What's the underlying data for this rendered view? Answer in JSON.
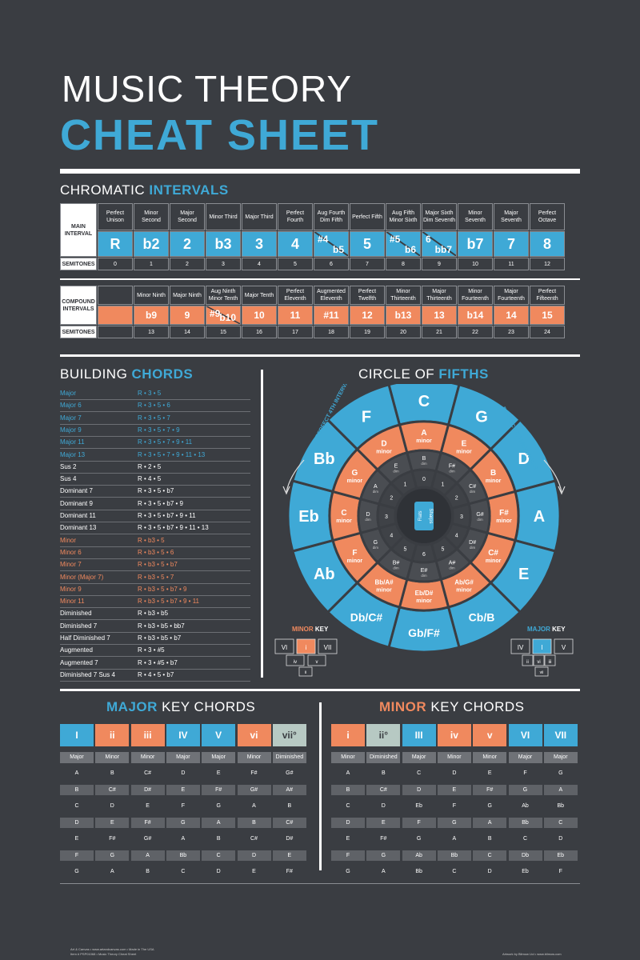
{
  "header": {
    "title_line1": "MUSIC THEORY",
    "title_line2": "CHEAT SHEET"
  },
  "chromatic": {
    "title_a": "CHROMATIC ",
    "title_b": "INTERVALS",
    "label_main": "MAIN INTERVAL",
    "label_semi": "SEMITONES",
    "names": [
      "Perfect Unison",
      "Minor Second",
      "Major Second",
      "Minor Third",
      "Major Third",
      "Perfect Fourth",
      "Aug Fourth Dim Fifth",
      "Perfect Fifth",
      "Aug Fifth Minor Sixth",
      "Major Sixth Dim Seventh",
      "Minor Seventh",
      "Major Seventh",
      "Perfect Octave"
    ],
    "symbols": [
      "R",
      "b2",
      "2",
      "b3",
      "3",
      "4",
      {
        "a": "#4",
        "b": "b5"
      },
      "5",
      {
        "a": "#5",
        "b": "b6"
      },
      {
        "a": "6",
        "b": "bb7"
      },
      "b7",
      "7",
      "8"
    ],
    "semitones": [
      "0",
      "1",
      "2",
      "3",
      "4",
      "5",
      "6",
      "7",
      "8",
      "9",
      "10",
      "11",
      "12"
    ]
  },
  "compound": {
    "label_main": "COMPOUND INTERVALS",
    "label_semi": "SEMITONES",
    "names": [
      "",
      "Minor Ninth",
      "Major Ninth",
      "Aug Ninth Minor Tenth",
      "Major Tenth",
      "Perfect Eleventh",
      "Augmented Eleventh",
      "Perfect Twelfth",
      "Minor Thirteenth",
      "Major Thirteenth",
      "Minor Fourteenth",
      "Major Fourteenth",
      "Perfect Fifteenth"
    ],
    "symbols": [
      "",
      "b9",
      "9",
      {
        "a": "#9",
        "b": "b10"
      },
      "10",
      "11",
      "#11",
      "12",
      "b13",
      "13",
      "b14",
      "14",
      "15"
    ],
    "semitones": [
      "",
      "13",
      "14",
      "15",
      "16",
      "17",
      "18",
      "19",
      "20",
      "21",
      "22",
      "23",
      "24"
    ]
  },
  "building": {
    "title_a": "BUILDING ",
    "title_b": "CHORDS",
    "rows": [
      {
        "name": "Major",
        "formula": "R • 3 • 5",
        "color": "blue"
      },
      {
        "name": "Major 6",
        "formula": "R • 3 • 5 • 6",
        "color": "blue"
      },
      {
        "name": "Major 7",
        "formula": "R • 3 • 5 • 7",
        "color": "blue"
      },
      {
        "name": "Major 9",
        "formula": "R • 3 • 5 • 7 • 9",
        "color": "blue"
      },
      {
        "name": "Major 11",
        "formula": "R • 3 • 5 • 7 • 9 • 11",
        "color": "blue"
      },
      {
        "name": "Major 13",
        "formula": "R • 3 • 5 • 7 • 9 • 11 • 13",
        "color": "blue"
      },
      {
        "name": "Sus 2",
        "formula": "R • 2 • 5",
        "color": "white"
      },
      {
        "name": "Sus 4",
        "formula": "R • 4 • 5",
        "color": "white"
      },
      {
        "name": "Dominant 7",
        "formula": "R • 3 • 5 • b7",
        "color": "white"
      },
      {
        "name": "Dominant 9",
        "formula": "R • 3 • 5 • b7 • 9",
        "color": "white"
      },
      {
        "name": "Dominant 11",
        "formula": "R • 3 • 5 • b7 • 9 • 11",
        "color": "white"
      },
      {
        "name": "Dominant 13",
        "formula": "R • 3 • 5 • b7 • 9 • 11 • 13",
        "color": "white"
      },
      {
        "name": "Minor",
        "formula": "R • b3 • 5",
        "color": "orange"
      },
      {
        "name": "Minor 6",
        "formula": "R • b3 • 5 • 6",
        "color": "orange"
      },
      {
        "name": "Minor 7",
        "formula": "R • b3 • 5 • b7",
        "color": "orange"
      },
      {
        "name": "Minor (Major 7)",
        "formula": "R • b3 • 5 • 7",
        "color": "orange"
      },
      {
        "name": "Minor 9",
        "formula": "R • b3 • 5 • b7 • 9",
        "color": "orange"
      },
      {
        "name": "Minor 11",
        "formula": "R • b3 • 5 • b7 • 9 • 11",
        "color": "orange"
      },
      {
        "name": "Diminished",
        "formula": "R • b3 • b5",
        "color": "white"
      },
      {
        "name": "Diminished 7",
        "formula": "R • b3 • b5 • bb7",
        "color": "white"
      },
      {
        "name": "Half Diminished 7",
        "formula": "R • b3 • b5 • b7",
        "color": "white"
      },
      {
        "name": "Augmented",
        "formula": "R • 3 • #5",
        "color": "white"
      },
      {
        "name": "Augmented 7",
        "formula": "R • 3 • #5 • b7",
        "color": "white"
      },
      {
        "name": "Diminished 7 Sus 4",
        "formula": "R • 4 • 5 • b7",
        "color": "white"
      }
    ]
  },
  "circle": {
    "title_a": "CIRCLE OF ",
    "title_b": "FIFTHS",
    "arc_left": "PERFECT 4TH INTERVALS",
    "arc_right": "PERFECT 5TH INTERVALS",
    "outer": [
      "C",
      "G",
      "D",
      "A",
      "E",
      "Cb/B",
      "Gb/F#",
      "Db/C#",
      "Ab",
      "Eb",
      "Bb",
      "F"
    ],
    "middle": [
      [
        "A",
        "minor"
      ],
      [
        "E",
        "minor"
      ],
      [
        "B",
        "minor"
      ],
      [
        "F#",
        "minor"
      ],
      [
        "C#",
        "minor"
      ],
      [
        "Ab/G#",
        "minor"
      ],
      [
        "Eb/D#",
        "minor"
      ],
      [
        "Bb/A#",
        "minor"
      ],
      [
        "F",
        "minor"
      ],
      [
        "C",
        "minor"
      ],
      [
        "G",
        "minor"
      ],
      [
        "D",
        "minor"
      ]
    ],
    "inner": [
      [
        "B",
        "dim"
      ],
      [
        "F#",
        "dim"
      ],
      [
        "C#",
        "dim"
      ],
      [
        "G#",
        "dim"
      ],
      [
        "D#",
        "dim"
      ],
      [
        "A#",
        "dim"
      ],
      [
        "E#",
        "dim"
      ],
      [
        "B#",
        "dim"
      ],
      [
        "G",
        "dim"
      ],
      [
        "D",
        "dim"
      ],
      [
        "A",
        "dim"
      ],
      [
        "E",
        "dim"
      ]
    ],
    "counts": [
      "0",
      "1",
      "2",
      "3",
      "4",
      "5",
      "6",
      "5",
      "4",
      "3",
      "2",
      "1"
    ],
    "center_left": "Flats",
    "center_right": "Sharps",
    "minor_key_label_a": "MINOR",
    "minor_key_label_b": " KEY",
    "major_key_label_a": "MAJOR",
    "major_key_label_b": " KEY",
    "minor_fan": {
      "top": [
        "VI",
        "i",
        "VII"
      ],
      "bottom": [
        "iv",
        "v"
      ],
      "low": "ii"
    },
    "major_fan": {
      "top": [
        "IV",
        "I",
        "V"
      ],
      "bottom": [
        "ii",
        "vi",
        "iii"
      ],
      "low": "vii"
    }
  },
  "major_key": {
    "title_a": "MAJOR",
    "title_b": " KEY CHORDS",
    "numerals": [
      "I",
      "ii",
      "iii",
      "IV",
      "V",
      "vi",
      "vii°"
    ],
    "numeral_colors": [
      "#3fa9d6",
      "#f0895e",
      "#f0895e",
      "#3fa9d6",
      "#3fa9d6",
      "#f0895e",
      "#b7c9c3"
    ],
    "qualities": [
      "Major",
      "Minor",
      "Minor",
      "Major",
      "Major",
      "Minor",
      "Diminished"
    ],
    "rows": [
      [
        "A",
        "B",
        "C#",
        "D",
        "E",
        "F#",
        "G#"
      ],
      [
        "B",
        "C#",
        "D#",
        "E",
        "F#",
        "G#",
        "A#"
      ],
      [
        "C",
        "D",
        "E",
        "F",
        "G",
        "A",
        "B"
      ],
      [
        "D",
        "E",
        "F#",
        "G",
        "A",
        "B",
        "C#"
      ],
      [
        "E",
        "F#",
        "G#",
        "A",
        "B",
        "C#",
        "D#"
      ],
      [
        "F",
        "G",
        "A",
        "Bb",
        "C",
        "D",
        "E"
      ],
      [
        "G",
        "A",
        "B",
        "C",
        "D",
        "E",
        "F#"
      ]
    ]
  },
  "minor_key": {
    "title_a": "MINOR",
    "title_b": " KEY CHORDS",
    "numerals": [
      "i",
      "ii°",
      "III",
      "iv",
      "v",
      "VI",
      "VII"
    ],
    "numeral_colors": [
      "#f0895e",
      "#b7c9c3",
      "#3fa9d6",
      "#f0895e",
      "#f0895e",
      "#3fa9d6",
      "#3fa9d6"
    ],
    "qualities": [
      "Minor",
      "Diminished",
      "Major",
      "Minor",
      "Minor",
      "Major",
      "Major"
    ],
    "rows": [
      [
        "A",
        "B",
        "C",
        "D",
        "E",
        "F",
        "G"
      ],
      [
        "B",
        "C#",
        "D",
        "E",
        "F#",
        "G",
        "A"
      ],
      [
        "C",
        "D",
        "Eb",
        "F",
        "G",
        "Ab",
        "Bb"
      ],
      [
        "D",
        "E",
        "F",
        "G",
        "A",
        "Bb",
        "C"
      ],
      [
        "E",
        "F#",
        "G",
        "A",
        "B",
        "C",
        "D"
      ],
      [
        "F",
        "G",
        "Ab",
        "Bb",
        "C",
        "Db",
        "Eb"
      ],
      [
        "G",
        "A",
        "Bb",
        "C",
        "D",
        "Eb",
        "F"
      ]
    ]
  },
  "footer": {
    "left_1": "Art & Canvas • www.artandcanvas.com • Made in The USA",
    "left_2": "Item # PSP01068 • Music Theory Cheat Sheet",
    "right": "Artwork by Blimow Ltd • www.blimow.com"
  },
  "colors": {
    "bg": "#3a3d42",
    "blue": "#3fa9d6",
    "orange": "#f0895e",
    "grey": "#b7c9c3"
  }
}
